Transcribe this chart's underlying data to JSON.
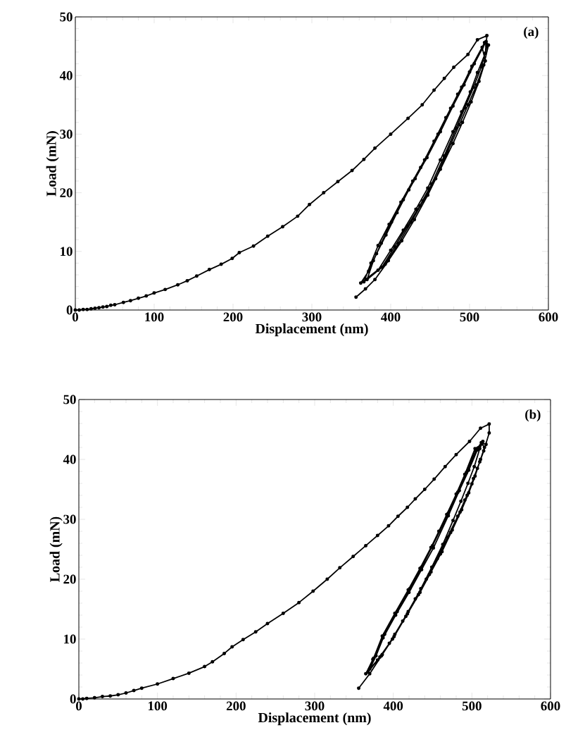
{
  "chart_data": [
    {
      "type": "line",
      "xlabel": "Displacement (nm)",
      "ylabel": "Load (mN)",
      "annotations": [
        "(a)"
      ],
      "color": "#000000",
      "marker": "circle",
      "line_style": "solid",
      "xlim": [
        0,
        600
      ],
      "ylim": [
        0,
        50
      ],
      "xticks": [
        0,
        100,
        200,
        300,
        400,
        500,
        600
      ],
      "yticks": [
        0,
        10,
        20,
        30,
        40,
        50
      ],
      "x": [
        0,
        5,
        10,
        15,
        20,
        25,
        30,
        35,
        40,
        45,
        50,
        61,
        70,
        80,
        90,
        100,
        114,
        130,
        142,
        154,
        170,
        185,
        199,
        208,
        226,
        244,
        263,
        282,
        297,
        315,
        333,
        351,
        366,
        380,
        400,
        422,
        440,
        455,
        468,
        480,
        498,
        510,
        522,
        520,
        510,
        501,
        490,
        479,
        463,
        447,
        432,
        416,
        400,
        384,
        366,
        375,
        384,
        398,
        413,
        428,
        443,
        460,
        476,
        490,
        503,
        519,
        522,
        515,
        505,
        494,
        483,
        468,
        452,
        437,
        421,
        405,
        389,
        370,
        378,
        388,
        401,
        416,
        431,
        446,
        463,
        479,
        493,
        506,
        521,
        524,
        518,
        509,
        498,
        487,
        472,
        457,
        441,
        426,
        410,
        393,
        362,
        372,
        382,
        394,
        408,
        423,
        438,
        455,
        470,
        485,
        500,
        516,
        520,
        512,
        502,
        491,
        479,
        463,
        447,
        430,
        414,
        397,
        380,
        368,
        356
      ],
      "values": [
        0,
        0.0,
        0.1,
        0.1,
        0.2,
        0.3,
        0.4,
        0.5,
        0.6,
        0.8,
        0.9,
        1.3,
        1.6,
        2.0,
        2.4,
        2.9,
        3.5,
        4.3,
        5.0,
        5.8,
        6.9,
        7.8,
        8.8,
        9.8,
        10.9,
        12.6,
        14.2,
        16.0,
        18.0,
        20.0,
        21.9,
        23.8,
        25.7,
        27.6,
        30.0,
        32.7,
        35.0,
        37.5,
        39.5,
        41.4,
        43.6,
        46.1,
        46.8,
        43.8,
        40.5,
        37.2,
        33.8,
        30.4,
        25.6,
        20.8,
        17.2,
        13.6,
        10.2,
        6.8,
        4.8,
        8.0,
        11.0,
        14.6,
        18.4,
        22.0,
        25.6,
        30.0,
        34.4,
        38.0,
        41.6,
        45.6,
        45.0,
        41.5,
        38.0,
        34.5,
        31.0,
        26.3,
        21.5,
        17.8,
        14.3,
        10.8,
        7.3,
        5.2,
        8.4,
        11.4,
        15.0,
        18.8,
        22.4,
        26.0,
        30.4,
        34.8,
        38.4,
        42.0,
        45.8,
        45.2,
        41.8,
        38.4,
        35.0,
        31.6,
        27.0,
        22.4,
        18.6,
        15.0,
        11.4,
        7.8,
        4.6,
        6.6,
        9.6,
        12.8,
        16.6,
        20.5,
        24.3,
        28.8,
        32.8,
        36.8,
        40.6,
        44.8,
        42.5,
        39.0,
        35.5,
        32.0,
        28.4,
        24.0,
        19.6,
        15.4,
        11.8,
        8.4,
        5.2,
        3.6,
        2.2
      ]
    },
    {
      "type": "line",
      "xlabel": "Displacement (nm)",
      "ylabel": "Load (mN)",
      "annotations": [
        "(b)"
      ],
      "color": "#000000",
      "marker": "circle",
      "line_style": "solid",
      "xlim": [
        0,
        600
      ],
      "ylim": [
        0,
        50
      ],
      "xticks": [
        0,
        100,
        200,
        300,
        400,
        500,
        600
      ],
      "yticks": [
        0,
        10,
        20,
        30,
        40,
        50
      ],
      "x": [
        0,
        5,
        10,
        20,
        30,
        40,
        50,
        60,
        70,
        80,
        100,
        120,
        140,
        160,
        170,
        185,
        195,
        209,
        225,
        240,
        260,
        280,
        298,
        316,
        332,
        349,
        365,
        380,
        394,
        406,
        418,
        428,
        440,
        452,
        466,
        480,
        497,
        511,
        522,
        522,
        515,
        507,
        500,
        491,
        482,
        469,
        456,
        442,
        428,
        412,
        395,
        380,
        368,
        375,
        386,
        402,
        419,
        434,
        448,
        458,
        468,
        480,
        491,
        504,
        513,
        516,
        510,
        502,
        494,
        485,
        473,
        460,
        446,
        432,
        416,
        399,
        383,
        370,
        378,
        389,
        405,
        421,
        436,
        450,
        470,
        482,
        493,
        505,
        512,
        518,
        511,
        504,
        496,
        487,
        475,
        462,
        448,
        434,
        418,
        401,
        385,
        365,
        374,
        387,
        403,
        420,
        436,
        451,
        470,
        484,
        496,
        507,
        514,
        510,
        503,
        495,
        486,
        476,
        463,
        449,
        435,
        419,
        402,
        386,
        370,
        356
      ],
      "values": [
        0,
        0.0,
        0.1,
        0.2,
        0.4,
        0.5,
        0.7,
        1.0,
        1.4,
        1.8,
        2.5,
        3.4,
        4.3,
        5.4,
        6.2,
        7.6,
        8.7,
        9.9,
        11.2,
        12.6,
        14.3,
        16.1,
        18.0,
        20.0,
        21.9,
        23.8,
        25.6,
        27.3,
        28.9,
        30.5,
        32.0,
        33.4,
        35.0,
        36.7,
        38.8,
        40.8,
        43.0,
        45.2,
        45.9,
        44.4,
        41.4,
        38.5,
        35.9,
        33.2,
        30.5,
        27.0,
        23.4,
        20.0,
        16.7,
        13.0,
        9.3,
        6.5,
        4.5,
        6.8,
        10.5,
        14.3,
        18.2,
        21.8,
        25.3,
        28.0,
        30.8,
        34.2,
        37.5,
        41.8,
        42.6,
        42.0,
        39.6,
        36.8,
        34.0,
        31.2,
        27.8,
        24.2,
        20.8,
        17.4,
        13.8,
        10.0,
        7.0,
        5.0,
        7.2,
        10.8,
        14.6,
        18.4,
        22.0,
        25.6,
        31.0,
        34.5,
        37.8,
        41.5,
        42.8,
        42.5,
        40.0,
        37.2,
        34.4,
        31.6,
        28.2,
        24.6,
        21.2,
        17.8,
        14.2,
        10.4,
        7.2,
        4.2,
        6.6,
        10.2,
        14.0,
        17.8,
        21.6,
        25.2,
        30.6,
        34.8,
        38.2,
        41.6,
        43.0,
        41.8,
        38.8,
        36.0,
        33.0,
        29.8,
        25.8,
        22.0,
        18.4,
        14.6,
        10.8,
        7.4,
        4.2,
        1.8
      ]
    }
  ]
}
